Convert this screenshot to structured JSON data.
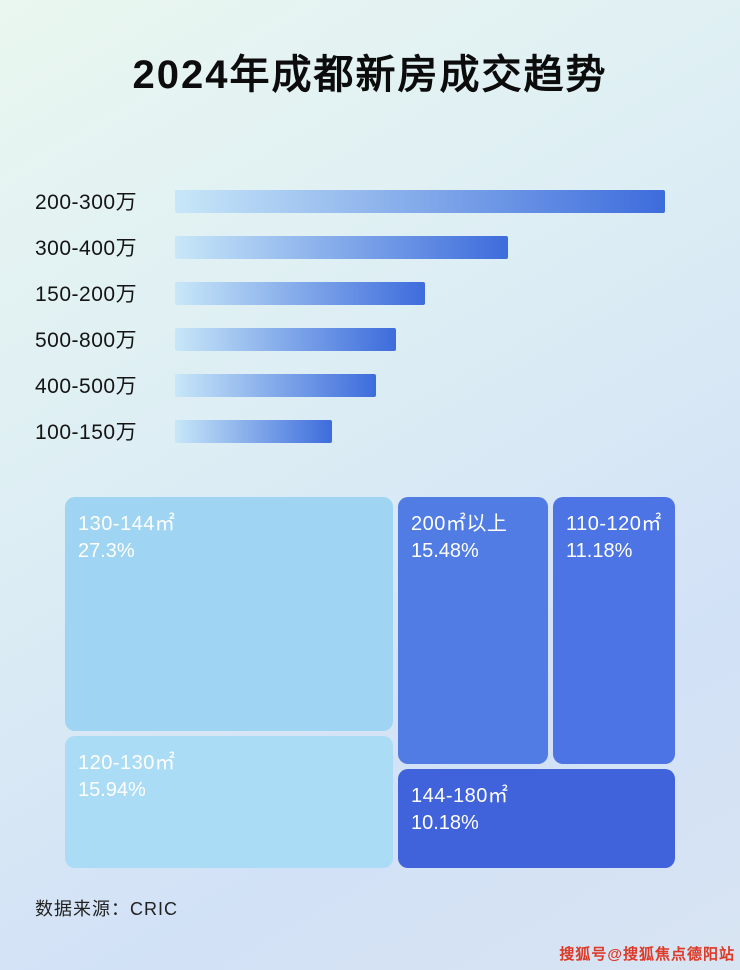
{
  "page": {
    "title": "2024年成都新房成交趋势",
    "footer": "数据来源：CRIC",
    "watermark": "搜狐号@搜狐焦点德阳站"
  },
  "colors": {
    "bar_gradient_start": "#c8e7f8",
    "bar_gradient_end": "#3d6cdc",
    "title": "#0c0c0c",
    "watermark": "#dd3a28",
    "treemap_text": "#ffffff"
  },
  "chart_data": [
    {
      "type": "bar",
      "orientation": "horizontal",
      "title": "2024年成都新房成交趋势",
      "categories": [
        "200-300万",
        "300-400万",
        "150-200万",
        "500-800万",
        "400-500万",
        "100-150万"
      ],
      "values": [
        100,
        68,
        51,
        45,
        41,
        32
      ],
      "values_note": "relative bar lengths estimated from pixels; no numeric axis shown",
      "xlabel": "",
      "ylabel": "",
      "grid": false,
      "legend": false
    },
    {
      "type": "treemap",
      "items": [
        {
          "label": "130-144㎡",
          "value": 27.3,
          "value_label": "27.3%",
          "color": "#9fd4f2"
        },
        {
          "label": "200㎡以上",
          "value": 15.48,
          "value_label": "15.48%",
          "color": "#507ce4"
        },
        {
          "label": "110-120㎡",
          "value": 11.18,
          "value_label": "11.18%",
          "color": "#4d74e4"
        },
        {
          "label": "120-130㎡",
          "value": 15.94,
          "value_label": "15.94%",
          "color": "#abdcf6"
        },
        {
          "label": "144-180㎡",
          "value": 10.18,
          "value_label": "10.18%",
          "color": "#4062da"
        }
      ],
      "legend": false
    }
  ]
}
